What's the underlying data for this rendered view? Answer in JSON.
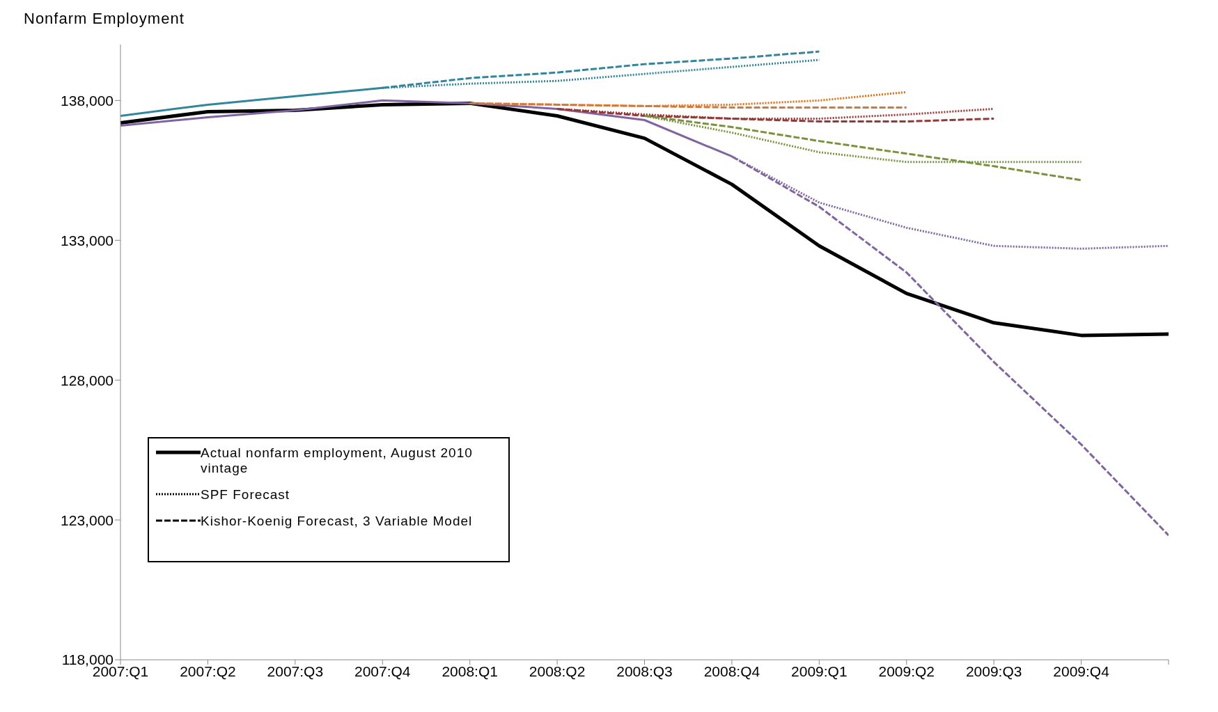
{
  "chart_data": {
    "type": "line",
    "ylabel": "Nonfarm Employment",
    "categories": [
      "2007:Q1",
      "2007:Q2",
      "2007:Q3",
      "2007:Q4",
      "2008:Q1",
      "2008:Q2",
      "2008:Q3",
      "2008:Q4",
      "2009:Q1",
      "2009:Q2",
      "2009:Q3",
      "2009:Q4",
      null
    ],
    "ylim": [
      118000,
      140000
    ],
    "yticks": [
      {
        "value": 118000,
        "label": "118,000"
      },
      {
        "value": 123000,
        "label": "123,000"
      },
      {
        "value": 128000,
        "label": "128,000"
      },
      {
        "value": 133000,
        "label": "133,000"
      },
      {
        "value": 138000,
        "label": "138,000"
      }
    ],
    "grid": false,
    "legend": "bottom left",
    "marker": "none",
    "series": [
      {
        "name": "Actual nonfarm employment, August 2010 vintage",
        "color": "#000000",
        "line_style": "solid",
        "values": [
          137200,
          137600,
          137650,
          137850,
          137900,
          137450,
          136650,
          135000,
          132800,
          131100,
          130050,
          129600,
          129650
        ]
      },
      {
        "name": "SPF Forecast",
        "color": "#000000",
        "line_style": "dotted",
        "values": [
          null,
          null,
          null,
          null,
          null,
          null,
          null,
          null,
          null,
          null,
          null,
          null,
          null
        ]
      },
      {
        "name": "Kishor-Koenig Forecast, 3 Variable Model",
        "color": "#000000",
        "line_style": "dashed",
        "values": [
          null,
          null,
          null,
          null,
          null,
          null,
          null,
          null,
          null,
          null,
          null,
          null,
          null
        ]
      },
      {
        "color": "#31859c",
        "line_style": "solid",
        "values": [
          137450,
          137850,
          138150,
          138450,
          null,
          null,
          null,
          null,
          null,
          null,
          null,
          null,
          null
        ]
      },
      {
        "color": "#31859c",
        "line_style": "dotted",
        "values": [
          null,
          null,
          null,
          138450,
          138600,
          138700,
          138950,
          139200,
          139450,
          null,
          null,
          null,
          null
        ]
      },
      {
        "color": "#31859c",
        "line_style": "dashed",
        "values": [
          null,
          null,
          null,
          138450,
          138800,
          139000,
          139300,
          139500,
          139750,
          null,
          null,
          null,
          null
        ]
      },
      {
        "color": "#e46c0a",
        "line_style": "dotted",
        "values": [
          null,
          null,
          null,
          null,
          137900,
          137850,
          137800,
          137850,
          138000,
          138300,
          null,
          null,
          null
        ]
      },
      {
        "color": "#d2793a",
        "line_style": "dashed",
        "values": [
          null,
          null,
          null,
          null,
          137900,
          137850,
          137800,
          137750,
          137750,
          137750,
          null,
          null,
          null
        ]
      },
      {
        "color": "#953735",
        "line_style": "dotted",
        "values": [
          null,
          null,
          null,
          null,
          null,
          137700,
          137500,
          137350,
          137350,
          137500,
          137700,
          null,
          null
        ]
      },
      {
        "color": "#953735",
        "line_style": "dashed",
        "values": [
          null,
          null,
          null,
          null,
          null,
          137700,
          137450,
          137350,
          137250,
          137250,
          137350,
          null,
          null
        ]
      },
      {
        "color": "#77933c",
        "line_style": "dotted",
        "values": [
          null,
          null,
          null,
          null,
          null,
          null,
          137450,
          136850,
          136150,
          135800,
          135800,
          135800,
          null
        ]
      },
      {
        "color": "#77933c",
        "line_style": "dashed",
        "values": [
          null,
          null,
          null,
          null,
          null,
          null,
          137450,
          137050,
          136550,
          136100,
          135650,
          135150,
          null
        ]
      },
      {
        "color": "#8064a2",
        "line_style": "solid",
        "values": [
          137100,
          137400,
          137650,
          138000,
          137900,
          137700,
          137300,
          136000,
          null,
          null,
          null,
          null,
          null
        ]
      },
      {
        "color": "#8064a2",
        "line_style": "dotted",
        "values": [
          null,
          null,
          null,
          null,
          null,
          null,
          null,
          136000,
          134350,
          133450,
          132800,
          132700,
          132800
        ]
      },
      {
        "color": "#8064a2",
        "line_style": "dashed",
        "values": [
          null,
          null,
          null,
          null,
          null,
          null,
          null,
          136000,
          134200,
          131850,
          128650,
          125700,
          122450
        ]
      }
    ]
  }
}
